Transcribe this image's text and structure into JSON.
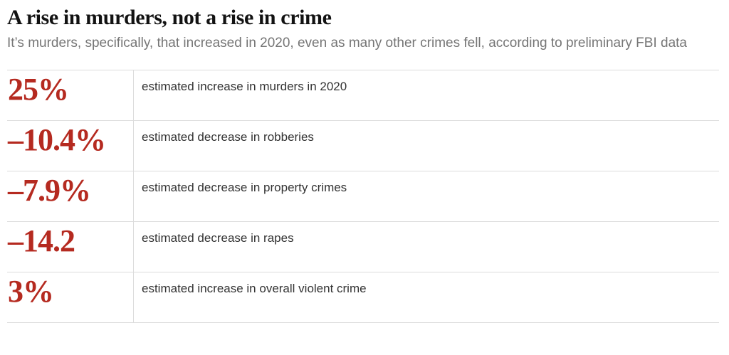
{
  "header": {
    "title": "A rise in murders, not a rise in crime",
    "subtitle": "It’s murders, specifically, that increased in 2020, even as many other crimes fell, according to preliminary FBI data"
  },
  "chart_data": {
    "type": "table",
    "title": "A rise in murders, not a rise in crime",
    "subtitle": "It’s murders, specifically, that increased in 2020, even as many other crimes fell, according to preliminary FBI data",
    "columns": [
      "value",
      "description"
    ],
    "rows": [
      {
        "value": "25%",
        "numeric": 25,
        "label": "estimated increase in murders in 2020"
      },
      {
        "value": "–10.4%",
        "numeric": -10.4,
        "label": "estimated decrease in robberies"
      },
      {
        "value": "–7.9%",
        "numeric": -7.9,
        "label": "estimated decrease in property crimes"
      },
      {
        "value": "–14.2",
        "numeric": -14.2,
        "label": "estimated decrease in rapes"
      },
      {
        "value": "3%",
        "numeric": 3,
        "label": "estimated increase in overall violent crime"
      }
    ],
    "layout_hints": {
      "grid": "horizontal rules between rows, single vertical divider",
      "value_column_alignment": "left",
      "legend": "none"
    }
  },
  "colors": {
    "accent_red": "#b52a20",
    "title_text": "#121212",
    "subtitle_text": "#757575",
    "label_text": "#333333",
    "rule_gray": "#dcdcdc",
    "background": "#ffffff"
  }
}
